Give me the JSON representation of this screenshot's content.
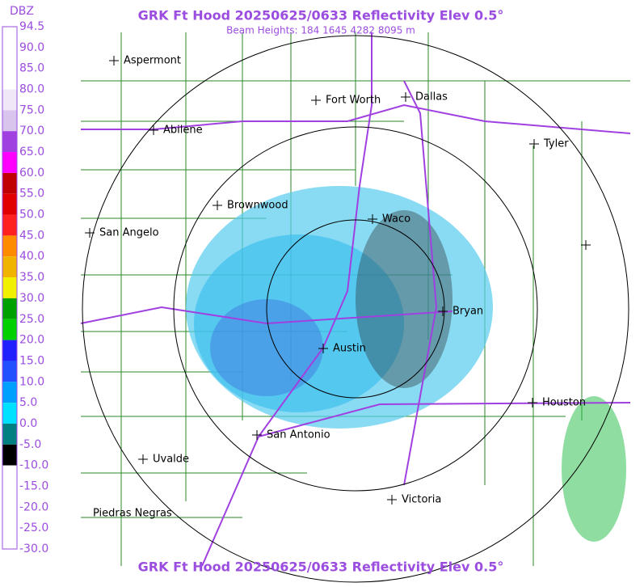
{
  "header": {
    "title": "GRK Ft Hood 20250625/0633 Reflectivity Elev 0.5°",
    "subtitle": "Beam Heights: 184 1645 4282 8095 m",
    "footer": "GRK Ft Hood 20250625/0633 Reflectivity Elev 0.5°"
  },
  "scale": {
    "unit": "DBZ",
    "labels": [
      "94.5",
      "90.0",
      "85.0",
      "80.0",
      "75.0",
      "70.0",
      "65.0",
      "60.0",
      "55.0",
      "50.0",
      "45.0",
      "40.0",
      "35.0",
      "30.0",
      "25.0",
      "20.0",
      "15.0",
      "10.0",
      "5.0",
      "0.0",
      "-5.0",
      "-10.0",
      "-15.0",
      "-20.0",
      "-25.0",
      "-30.0"
    ],
    "colors": [
      "#ffffff",
      "#ffffff",
      "#ffffff",
      "#f0e8f8",
      "#d8c4ec",
      "#a040e0",
      "#ff00ff",
      "#c00000",
      "#e00000",
      "#ff2020",
      "#ff8c00",
      "#f0b400",
      "#f0f000",
      "#00a000",
      "#00d000",
      "#2020ff",
      "#2050ff",
      "#00a0ff",
      "#00e0ff",
      "#008080",
      "#000000",
      "#ffffff",
      "#ffffff",
      "#ffffff",
      "#ffffff"
    ]
  },
  "cities": [
    "Aspermont",
    "Fort Worth",
    "Dallas",
    "Abilene",
    "Tyler",
    "Brownwood",
    "Waco",
    "San Angelo",
    "Bryan",
    "Austin",
    "Houston",
    "San Antonio",
    "Uvalde",
    "Victoria",
    "Piedras Negras"
  ]
}
